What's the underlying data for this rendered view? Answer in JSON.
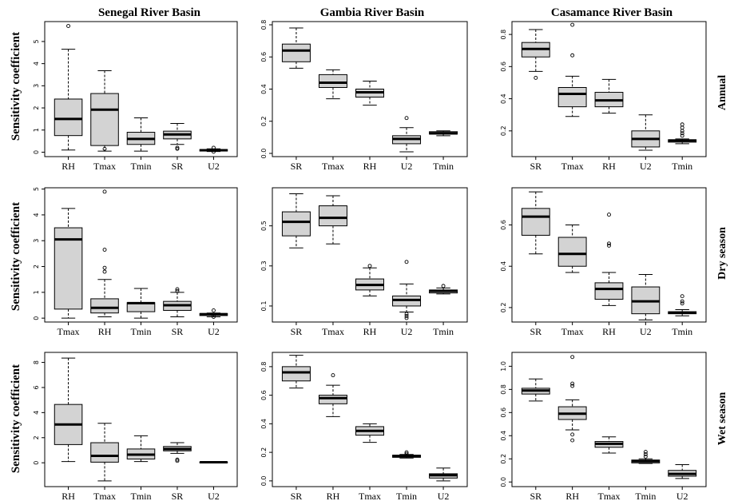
{
  "figure": {
    "column_titles": [
      "Senegal River Basin",
      "Gambia River Basin",
      "Casamance River Basin"
    ],
    "row_labels": [
      "Annual",
      "Dry season",
      "Wet season"
    ],
    "ylabel": "Sensitivity coefficient"
  },
  "chart_data": [
    {
      "type": "boxplot",
      "basin": "Senegal River Basin",
      "period": "Annual",
      "ylim": [
        -0.2,
        5.9
      ],
      "yticks": [
        0,
        1,
        2,
        3,
        4,
        5
      ],
      "ytick_labels": [
        "0",
        "1",
        "2",
        "3",
        "4",
        "5"
      ],
      "boxes": [
        {
          "name": "RH",
          "min": 0.1,
          "q1": 0.75,
          "median": 1.5,
          "q3": 2.4,
          "max": 4.65,
          "outliers": [
            5.7
          ]
        },
        {
          "name": "Tmax",
          "min": 0.05,
          "q1": 0.3,
          "median": 1.92,
          "q3": 2.65,
          "max": 3.68,
          "outliers": [
            0.15
          ]
        },
        {
          "name": "Tmin",
          "min": 0.05,
          "q1": 0.35,
          "median": 0.6,
          "q3": 0.9,
          "max": 1.55,
          "outliers": []
        },
        {
          "name": "SR",
          "min": 0.35,
          "q1": 0.6,
          "median": 0.8,
          "q3": 0.95,
          "max": 1.3,
          "outliers": [
            0.2,
            0.15
          ]
        },
        {
          "name": "U2",
          "min": 0.03,
          "q1": 0.05,
          "median": 0.09,
          "q3": 0.12,
          "max": 0.15,
          "outliers": [
            0.2,
            0.02
          ]
        }
      ]
    },
    {
      "type": "boxplot",
      "basin": "Gambia River Basin",
      "period": "Annual",
      "ylim": [
        -0.02,
        0.82
      ],
      "yticks": [
        0,
        0.2,
        0.4,
        0.6,
        0.8
      ],
      "ytick_labels": [
        "0.0",
        "0.2",
        "0.4",
        "0.6",
        "0.8"
      ],
      "boxes": [
        {
          "name": "SR",
          "min": 0.53,
          "q1": 0.57,
          "median": 0.64,
          "q3": 0.68,
          "max": 0.78,
          "outliers": []
        },
        {
          "name": "Tmax",
          "min": 0.34,
          "q1": 0.41,
          "median": 0.44,
          "q3": 0.49,
          "max": 0.52,
          "outliers": []
        },
        {
          "name": "RH",
          "min": 0.3,
          "q1": 0.35,
          "median": 0.38,
          "q3": 0.4,
          "max": 0.45,
          "outliers": []
        },
        {
          "name": "U2",
          "min": 0.01,
          "q1": 0.06,
          "median": 0.09,
          "q3": 0.11,
          "max": 0.16,
          "outliers": [
            0.22
          ]
        },
        {
          "name": "Tmin",
          "min": 0.11,
          "q1": 0.12,
          "median": 0.125,
          "q3": 0.135,
          "max": 0.14,
          "outliers": []
        }
      ]
    },
    {
      "type": "boxplot",
      "basin": "Casamance River Basin",
      "period": "Annual",
      "ylim": [
        0.04,
        0.88
      ],
      "yticks": [
        0.2,
        0.4,
        0.6,
        0.8
      ],
      "ytick_labels": [
        "0.2",
        "0.4",
        "0.6",
        "0.8"
      ],
      "boxes": [
        {
          "name": "SR",
          "min": 0.57,
          "q1": 0.66,
          "median": 0.71,
          "q3": 0.75,
          "max": 0.83,
          "outliers": [
            0.53
          ]
        },
        {
          "name": "Tmax",
          "min": 0.29,
          "q1": 0.35,
          "median": 0.43,
          "q3": 0.47,
          "max": 0.54,
          "outliers": [
            0.67,
            0.86
          ]
        },
        {
          "name": "RH",
          "min": 0.31,
          "q1": 0.35,
          "median": 0.39,
          "q3": 0.44,
          "max": 0.52,
          "outliers": []
        },
        {
          "name": "U2",
          "min": 0.08,
          "q1": 0.1,
          "median": 0.15,
          "q3": 0.2,
          "max": 0.3,
          "outliers": []
        },
        {
          "name": "Tmin",
          "min": 0.12,
          "q1": 0.13,
          "median": 0.14,
          "q3": 0.145,
          "max": 0.15,
          "outliers": [
            0.17,
            0.185,
            0.2,
            0.22,
            0.24
          ]
        }
      ]
    },
    {
      "type": "boxplot",
      "basin": "Senegal River Basin",
      "period": "Dry season",
      "ylim": [
        -0.15,
        5.05
      ],
      "yticks": [
        0,
        1,
        2,
        3,
        4,
        5
      ],
      "ytick_labels": [
        "0",
        "1",
        "2",
        "3",
        "4",
        "5"
      ],
      "boxes": [
        {
          "name": "Tmax",
          "min": 0.0,
          "q1": 0.35,
          "median": 3.05,
          "q3": 3.5,
          "max": 4.25,
          "outliers": []
        },
        {
          "name": "RH",
          "min": 0.05,
          "q1": 0.2,
          "median": 0.4,
          "q3": 0.75,
          "max": 1.5,
          "outliers": [
            1.8,
            1.95,
            2.65,
            4.9
          ]
        },
        {
          "name": "Tmin",
          "min": 0.0,
          "q1": 0.25,
          "median": 0.58,
          "q3": 0.6,
          "max": 1.15,
          "outliers": []
        },
        {
          "name": "SR",
          "min": 0.05,
          "q1": 0.3,
          "median": 0.5,
          "q3": 0.65,
          "max": 1.0,
          "outliers": [
            1.05,
            1.12
          ]
        },
        {
          "name": "U2",
          "min": 0.05,
          "q1": 0.1,
          "median": 0.15,
          "q3": 0.18,
          "max": 0.2,
          "outliers": [
            0.3,
            0.05
          ]
        }
      ]
    },
    {
      "type": "boxplot",
      "basin": "Gambia River Basin",
      "period": "Dry season",
      "ylim": [
        0.02,
        0.69
      ],
      "yticks": [
        0.1,
        0.3,
        0.5
      ],
      "ytick_labels": [
        "0.1",
        "0.3",
        "0.5"
      ],
      "boxes": [
        {
          "name": "SR",
          "min": 0.39,
          "q1": 0.45,
          "median": 0.52,
          "q3": 0.57,
          "max": 0.66,
          "outliers": []
        },
        {
          "name": "Tmax",
          "min": 0.41,
          "q1": 0.5,
          "median": 0.54,
          "q3": 0.6,
          "max": 0.65,
          "outliers": []
        },
        {
          "name": "RH",
          "min": 0.15,
          "q1": 0.18,
          "median": 0.205,
          "q3": 0.235,
          "max": 0.29,
          "outliers": [
            0.3
          ]
        },
        {
          "name": "U2",
          "min": 0.07,
          "q1": 0.1,
          "median": 0.13,
          "q3": 0.15,
          "max": 0.21,
          "outliers": [
            0.32,
            0.06,
            0.05,
            0.04
          ]
        },
        {
          "name": "Tmin",
          "min": 0.16,
          "q1": 0.165,
          "median": 0.175,
          "q3": 0.18,
          "max": 0.19,
          "outliers": [
            0.2
          ]
        }
      ]
    },
    {
      "type": "boxplot",
      "basin": "Casamance River Basin",
      "period": "Dry season",
      "ylim": [
        0.13,
        0.78
      ],
      "yticks": [
        0.2,
        0.4,
        0.6
      ],
      "ytick_labels": [
        "0.2",
        "0.4",
        "0.6"
      ],
      "boxes": [
        {
          "name": "SR",
          "min": 0.46,
          "q1": 0.55,
          "median": 0.64,
          "q3": 0.68,
          "max": 0.76,
          "outliers": []
        },
        {
          "name": "Tmax",
          "min": 0.37,
          "q1": 0.4,
          "median": 0.46,
          "q3": 0.54,
          "max": 0.6,
          "outliers": []
        },
        {
          "name": "RH",
          "min": 0.21,
          "q1": 0.24,
          "median": 0.29,
          "q3": 0.32,
          "max": 0.37,
          "outliers": [
            0.5,
            0.51,
            0.65
          ]
        },
        {
          "name": "U2",
          "min": 0.14,
          "q1": 0.17,
          "median": 0.23,
          "q3": 0.3,
          "max": 0.36,
          "outliers": []
        },
        {
          "name": "Tmin",
          "min": 0.16,
          "q1": 0.17,
          "median": 0.175,
          "q3": 0.18,
          "max": 0.19,
          "outliers": [
            0.22,
            0.23,
            0.255
          ]
        }
      ]
    },
    {
      "type": "boxplot",
      "basin": "Senegal River Basin",
      "period": "Wet season",
      "ylim": [
        -1.9,
        8.8
      ],
      "yticks": [
        0,
        2,
        4,
        6,
        8
      ],
      "ytick_labels": [
        "0",
        "2",
        "4",
        "6",
        "8"
      ],
      "boxes": [
        {
          "name": "RH",
          "min": 0.1,
          "q1": 1.45,
          "median": 3.05,
          "q3": 4.65,
          "max": 8.35,
          "outliers": []
        },
        {
          "name": "Tmax",
          "min": -1.45,
          "q1": 0.05,
          "median": 0.55,
          "q3": 1.6,
          "max": 3.15,
          "outliers": []
        },
        {
          "name": "Tmin",
          "min": 0.1,
          "q1": 0.3,
          "median": 0.65,
          "q3": 1.1,
          "max": 2.15,
          "outliers": []
        },
        {
          "name": "SR",
          "min": 0.75,
          "q1": 0.95,
          "median": 1.1,
          "q3": 1.3,
          "max": 1.6,
          "outliers": [
            0.15,
            0.25
          ]
        },
        {
          "name": "U2",
          "min": 0.0,
          "q1": 0.02,
          "median": 0.04,
          "q3": 0.06,
          "max": 0.08,
          "outliers": []
        }
      ]
    },
    {
      "type": "boxplot",
      "basin": "Gambia River Basin",
      "period": "Wet season",
      "ylim": [
        -0.04,
        0.9
      ],
      "yticks": [
        0,
        0.2,
        0.4,
        0.6,
        0.8
      ],
      "ytick_labels": [
        "0.0",
        "0.2",
        "0.4",
        "0.6",
        "0.8"
      ],
      "boxes": [
        {
          "name": "SR",
          "min": 0.65,
          "q1": 0.7,
          "median": 0.76,
          "q3": 0.8,
          "max": 0.88,
          "outliers": []
        },
        {
          "name": "RH",
          "min": 0.45,
          "q1": 0.54,
          "median": 0.58,
          "q3": 0.6,
          "max": 0.67,
          "outliers": [
            0.74
          ]
        },
        {
          "name": "Tmax",
          "min": 0.27,
          "q1": 0.32,
          "median": 0.35,
          "q3": 0.38,
          "max": 0.4,
          "outliers": []
        },
        {
          "name": "Tmin",
          "min": 0.16,
          "q1": 0.165,
          "median": 0.175,
          "q3": 0.18,
          "max": 0.185,
          "outliers": [
            0.19,
            0.2
          ]
        },
        {
          "name": "U2",
          "min": 0.0,
          "q1": 0.02,
          "median": 0.04,
          "q3": 0.05,
          "max": 0.09,
          "outliers": []
        }
      ]
    },
    {
      "type": "boxplot",
      "basin": "Casamance River Basin",
      "period": "Wet season",
      "ylim": [
        -0.04,
        1.12
      ],
      "yticks": [
        0,
        0.2,
        0.4,
        0.6,
        0.8,
        1.0
      ],
      "ytick_labels": [
        "0.0",
        "0.2",
        "0.4",
        "0.6",
        "0.8",
        "1.0"
      ],
      "boxes": [
        {
          "name": "SR",
          "min": 0.7,
          "q1": 0.76,
          "median": 0.79,
          "q3": 0.81,
          "max": 0.89,
          "outliers": []
        },
        {
          "name": "RH",
          "min": 0.45,
          "q1": 0.54,
          "median": 0.59,
          "q3": 0.65,
          "max": 0.71,
          "outliers": [
            0.36,
            0.41,
            0.83,
            0.85,
            1.08
          ]
        },
        {
          "name": "Tmax",
          "min": 0.25,
          "q1": 0.3,
          "median": 0.33,
          "q3": 0.35,
          "max": 0.39,
          "outliers": []
        },
        {
          "name": "Tmin",
          "min": 0.16,
          "q1": 0.165,
          "median": 0.18,
          "q3": 0.19,
          "max": 0.2,
          "outliers": [
            0.22,
            0.24,
            0.26
          ]
        },
        {
          "name": "U2",
          "min": 0.03,
          "q1": 0.05,
          "median": 0.07,
          "q3": 0.1,
          "max": 0.15,
          "outliers": []
        }
      ]
    }
  ]
}
